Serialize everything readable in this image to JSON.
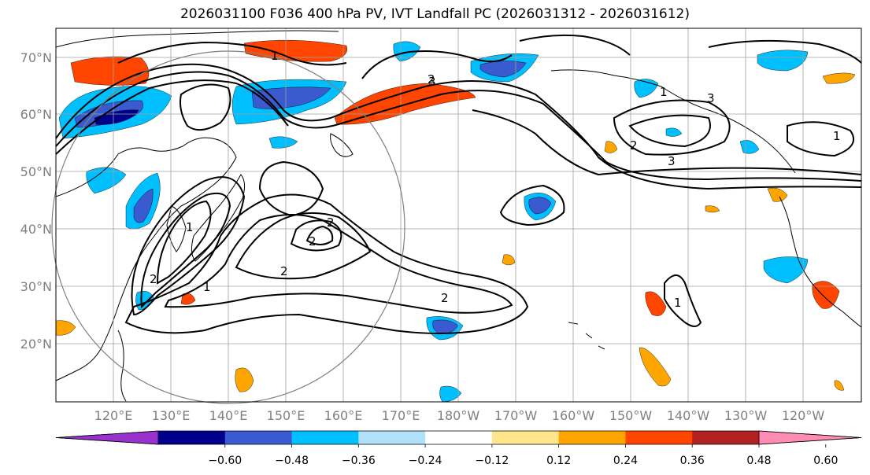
{
  "title": "2026031100 F036 400 hPa PV, IVT Landfall PC (2026031312 - 2026031612)",
  "lat_labels": [
    "70°N",
    "60°N",
    "50°N",
    "40°N",
    "30°N",
    "20°N"
  ],
  "lon_labels": [
    "120°E",
    "130°E",
    "140°E",
    "150°E",
    "160°E",
    "170°E",
    "180°W",
    "170°W",
    "160°W",
    "150°W",
    "140°W",
    "130°W",
    "120°W"
  ],
  "colorbar": {
    "ticks": [
      "−0.60",
      "−0.48",
      "−0.36",
      "−0.24",
      "−0.12",
      "0.12",
      "0.24",
      "0.36",
      "0.48",
      "0.60"
    ],
    "colors": [
      "#9932cc",
      "#00008b",
      "#3a5bd0",
      "#00bfff",
      "#b0e0fa",
      "#ffffff",
      "#ffe68c",
      "#ffa500",
      "#ff4500",
      "#b22222",
      "#ff8cb4"
    ]
  },
  "contour_labels": [
    "1",
    "2",
    "3",
    "1",
    "2",
    "2",
    "2",
    "2",
    "2",
    "1",
    "3",
    "3",
    "1",
    "2",
    "1",
    "1"
  ],
  "colors": {
    "land_line": "#000000",
    "grid": "#a0a0a0",
    "contour": "#000000",
    "circle": "#808080"
  }
}
